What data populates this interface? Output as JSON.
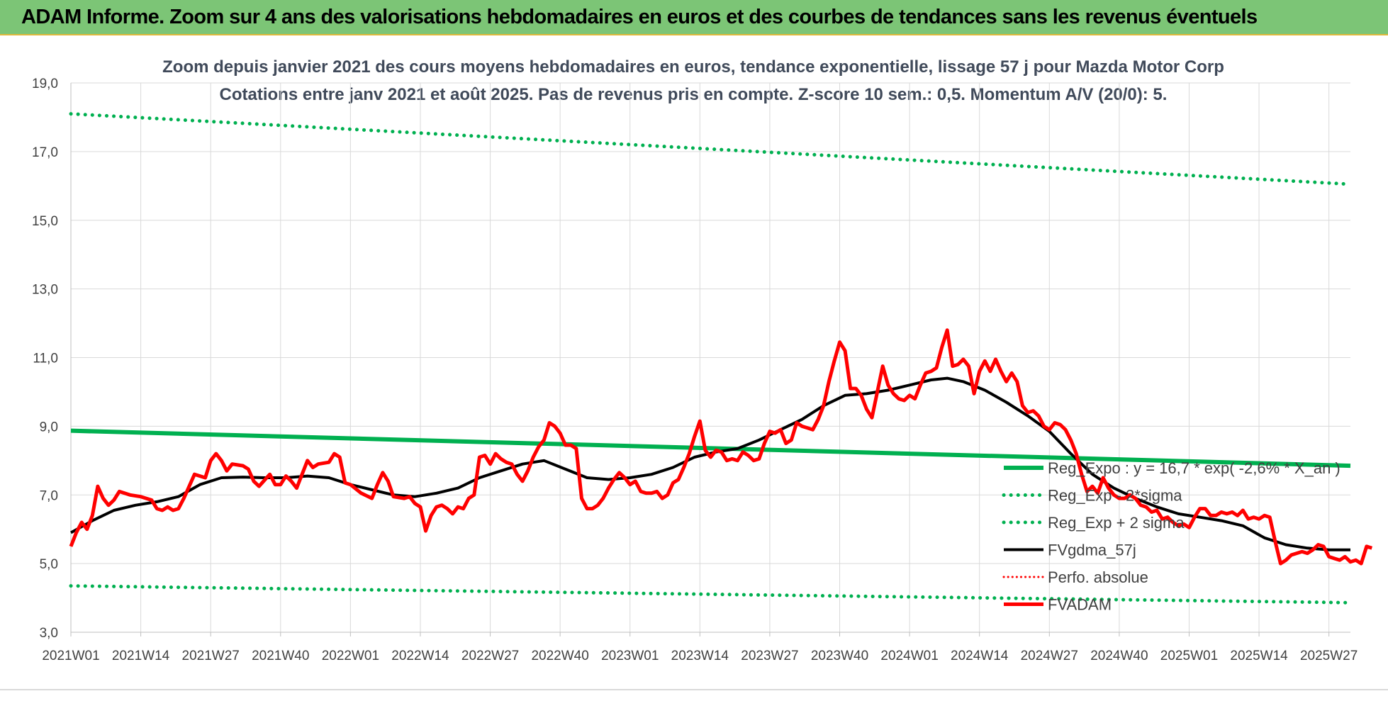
{
  "header": {
    "title": "ADAM Informe. Zoom sur 4 ans des valorisations hebdomadaires en euros et des courbes de tendances sans les revenus éventuels"
  },
  "colors": {
    "header_bg": "#7cc576",
    "green": "#00b050",
    "black": "#000000",
    "red": "#ff0000",
    "title_text": "#404a5a"
  },
  "chart_data": {
    "type": "line",
    "title": "Zoom depuis janvier 2021 des cours moyens hebdomadaires en euros, tendance exponentielle, lissage 57 j pour Mazda Motor Corp",
    "subtitle": "Cotations entre janv 2021 et août 2025.  Pas de revenus pris en compte. Z-score 10 sem.: 0,5. Momentum A/V (20/0): 5.",
    "xlabel": "",
    "ylabel": "",
    "ylim": [
      3,
      19
    ],
    "y_ticks": [
      "3,0",
      "5,0",
      "7,0",
      "9,0",
      "11,0",
      "13,0",
      "15,0",
      "17,0",
      "19,0"
    ],
    "x_ticks": [
      "2021W01",
      "2021W14",
      "2021W27",
      "2021W40",
      "2022W01",
      "2022W14",
      "2022W27",
      "2022W40",
      "2023W01",
      "2023W14",
      "2023W27",
      "2023W40",
      "2024W01",
      "2024W14",
      "2024W27",
      "2024W40",
      "2025W01",
      "2025W14",
      "2025W27"
    ],
    "x_tick_index": [
      0,
      13,
      26,
      39,
      52,
      65,
      78,
      91,
      104,
      117,
      130,
      143,
      156,
      169,
      182,
      195,
      208,
      221,
      234
    ],
    "x_range": [
      0,
      238
    ],
    "grid": true,
    "legend_position": "bottom-right",
    "series": [
      {
        "name": "Reg_Expo : y = 16,7 * exp( -2,6% *  X_an )",
        "style": "solid-green",
        "points": [
          [
            0,
            8.87
          ],
          [
            238,
            7.85
          ]
        ]
      },
      {
        "name": "Reg_Exp - 2*sigma",
        "style": "dotted-green",
        "points": [
          [
            0,
            4.35
          ],
          [
            238,
            3.86
          ]
        ]
      },
      {
        "name": "Reg_Exp + 2 sigma",
        "style": "dotted-green",
        "points": [
          [
            0,
            18.1
          ],
          [
            238,
            16.05
          ]
        ]
      },
      {
        "name": "FVgdma_57j",
        "style": "solid-black",
        "points": [
          [
            0,
            5.9
          ],
          [
            4,
            6.25
          ],
          [
            8,
            6.55
          ],
          [
            12,
            6.7
          ],
          [
            16,
            6.8
          ],
          [
            20,
            6.95
          ],
          [
            24,
            7.3
          ],
          [
            28,
            7.5
          ],
          [
            32,
            7.52
          ],
          [
            36,
            7.5
          ],
          [
            40,
            7.5
          ],
          [
            44,
            7.55
          ],
          [
            48,
            7.5
          ],
          [
            52,
            7.3
          ],
          [
            56,
            7.15
          ],
          [
            60,
            7.0
          ],
          [
            64,
            6.95
          ],
          [
            68,
            7.05
          ],
          [
            72,
            7.2
          ],
          [
            76,
            7.5
          ],
          [
            80,
            7.7
          ],
          [
            84,
            7.9
          ],
          [
            88,
            8.0
          ],
          [
            92,
            7.75
          ],
          [
            96,
            7.5
          ],
          [
            100,
            7.45
          ],
          [
            104,
            7.5
          ],
          [
            108,
            7.6
          ],
          [
            112,
            7.8
          ],
          [
            116,
            8.1
          ],
          [
            120,
            8.25
          ],
          [
            124,
            8.35
          ],
          [
            128,
            8.6
          ],
          [
            132,
            8.9
          ],
          [
            136,
            9.2
          ],
          [
            140,
            9.6
          ],
          [
            144,
            9.9
          ],
          [
            148,
            9.95
          ],
          [
            152,
            10.05
          ],
          [
            156,
            10.2
          ],
          [
            160,
            10.35
          ],
          [
            163,
            10.4
          ],
          [
            166,
            10.3
          ],
          [
            170,
            10.05
          ],
          [
            174,
            9.7
          ],
          [
            178,
            9.3
          ],
          [
            182,
            8.85
          ],
          [
            186,
            8.2
          ],
          [
            190,
            7.6
          ],
          [
            194,
            7.2
          ],
          [
            198,
            6.9
          ],
          [
            202,
            6.65
          ],
          [
            206,
            6.45
          ],
          [
            210,
            6.35
          ],
          [
            214,
            6.25
          ],
          [
            218,
            6.1
          ],
          [
            222,
            5.75
          ],
          [
            226,
            5.55
          ],
          [
            230,
            5.45
          ],
          [
            234,
            5.4
          ],
          [
            238,
            5.4
          ]
        ]
      },
      {
        "name": "Perfo. absolue",
        "style": "dotted-red",
        "points": []
      },
      {
        "name": "FVADAM",
        "style": "solid-red",
        "points": [
          [
            0,
            5.5
          ],
          [
            1,
            5.9
          ],
          [
            2,
            6.2
          ],
          [
            3,
            6.0
          ],
          [
            4,
            6.4
          ],
          [
            5,
            7.25
          ],
          [
            6,
            6.9
          ],
          [
            7,
            6.7
          ],
          [
            8,
            6.85
          ],
          [
            9,
            7.1
          ],
          [
            11,
            7.0
          ],
          [
            13,
            6.95
          ],
          [
            15,
            6.85
          ],
          [
            16,
            6.6
          ],
          [
            17,
            6.55
          ],
          [
            18,
            6.65
          ],
          [
            19,
            6.55
          ],
          [
            20,
            6.6
          ],
          [
            21,
            6.9
          ],
          [
            23,
            7.6
          ],
          [
            25,
            7.5
          ],
          [
            26,
            8.0
          ],
          [
            27,
            8.2
          ],
          [
            28,
            8.0
          ],
          [
            29,
            7.7
          ],
          [
            30,
            7.9
          ],
          [
            32,
            7.85
          ],
          [
            33,
            7.75
          ],
          [
            34,
            7.4
          ],
          [
            35,
            7.25
          ],
          [
            37,
            7.6
          ],
          [
            38,
            7.3
          ],
          [
            39,
            7.3
          ],
          [
            40,
            7.55
          ],
          [
            41,
            7.4
          ],
          [
            42,
            7.2
          ],
          [
            44,
            8.0
          ],
          [
            45,
            7.8
          ],
          [
            46,
            7.9
          ],
          [
            48,
            7.95
          ],
          [
            49,
            8.2
          ],
          [
            50,
            8.1
          ],
          [
            51,
            7.35
          ],
          [
            52,
            7.3
          ],
          [
            54,
            7.05
          ],
          [
            56,
            6.9
          ],
          [
            57,
            7.3
          ],
          [
            58,
            7.65
          ],
          [
            59,
            7.4
          ],
          [
            60,
            6.95
          ],
          [
            62,
            6.9
          ],
          [
            63,
            6.95
          ],
          [
            64,
            6.75
          ],
          [
            65,
            6.65
          ],
          [
            66,
            5.95
          ],
          [
            67,
            6.4
          ],
          [
            68,
            6.65
          ],
          [
            69,
            6.7
          ],
          [
            70,
            6.6
          ],
          [
            71,
            6.45
          ],
          [
            72,
            6.65
          ],
          [
            73,
            6.6
          ],
          [
            74,
            6.9
          ],
          [
            75,
            7.0
          ],
          [
            76,
            8.1
          ],
          [
            77,
            8.15
          ],
          [
            78,
            7.9
          ],
          [
            79,
            8.2
          ],
          [
            80,
            8.05
          ],
          [
            81,
            7.95
          ],
          [
            82,
            7.9
          ],
          [
            83,
            7.6
          ],
          [
            84,
            7.4
          ],
          [
            85,
            7.7
          ],
          [
            86,
            8.1
          ],
          [
            87,
            8.4
          ],
          [
            88,
            8.6
          ],
          [
            89,
            9.1
          ],
          [
            90,
            9.0
          ],
          [
            91,
            8.8
          ],
          [
            92,
            8.45
          ],
          [
            93,
            8.45
          ],
          [
            94,
            8.35
          ],
          [
            95,
            6.9
          ],
          [
            96,
            6.6
          ],
          [
            97,
            6.6
          ],
          [
            98,
            6.7
          ],
          [
            99,
            6.9
          ],
          [
            100,
            7.2
          ],
          [
            101,
            7.45
          ],
          [
            102,
            7.65
          ],
          [
            103,
            7.5
          ],
          [
            104,
            7.3
          ],
          [
            105,
            7.4
          ],
          [
            106,
            7.1
          ],
          [
            107,
            7.05
          ],
          [
            108,
            7.05
          ],
          [
            109,
            7.1
          ],
          [
            110,
            6.9
          ],
          [
            111,
            7.0
          ],
          [
            112,
            7.35
          ],
          [
            113,
            7.45
          ],
          [
            114,
            7.8
          ],
          [
            115,
            8.2
          ],
          [
            116,
            8.7
          ],
          [
            117,
            9.15
          ],
          [
            118,
            8.3
          ],
          [
            119,
            8.1
          ],
          [
            120,
            8.3
          ],
          [
            121,
            8.25
          ],
          [
            122,
            8.0
          ],
          [
            123,
            8.05
          ],
          [
            124,
            8.0
          ],
          [
            125,
            8.25
          ],
          [
            126,
            8.15
          ],
          [
            127,
            8.0
          ],
          [
            128,
            8.05
          ],
          [
            129,
            8.5
          ],
          [
            130,
            8.85
          ],
          [
            131,
            8.8
          ],
          [
            132,
            8.9
          ],
          [
            133,
            8.5
          ],
          [
            134,
            8.6
          ],
          [
            135,
            9.1
          ],
          [
            136,
            9.0
          ],
          [
            137,
            8.95
          ],
          [
            138,
            8.9
          ],
          [
            139,
            9.2
          ],
          [
            140,
            9.6
          ],
          [
            141,
            10.3
          ],
          [
            142,
            10.9
          ],
          [
            143,
            11.45
          ],
          [
            144,
            11.2
          ],
          [
            145,
            10.1
          ],
          [
            146,
            10.1
          ],
          [
            147,
            9.9
          ],
          [
            148,
            9.5
          ],
          [
            149,
            9.25
          ],
          [
            150,
            10.0
          ],
          [
            151,
            10.75
          ],
          [
            152,
            10.2
          ],
          [
            153,
            9.95
          ],
          [
            154,
            9.8
          ],
          [
            155,
            9.75
          ],
          [
            156,
            9.9
          ],
          [
            157,
            9.8
          ],
          [
            158,
            10.2
          ],
          [
            159,
            10.55
          ],
          [
            160,
            10.6
          ],
          [
            161,
            10.7
          ],
          [
            162,
            11.3
          ],
          [
            163,
            11.8
          ],
          [
            164,
            10.75
          ],
          [
            165,
            10.8
          ],
          [
            166,
            10.95
          ],
          [
            167,
            10.75
          ],
          [
            168,
            9.95
          ],
          [
            169,
            10.6
          ],
          [
            170,
            10.9
          ],
          [
            171,
            10.6
          ],
          [
            172,
            10.95
          ],
          [
            173,
            10.6
          ],
          [
            174,
            10.3
          ],
          [
            175,
            10.55
          ],
          [
            176,
            10.3
          ],
          [
            177,
            9.6
          ],
          [
            178,
            9.4
          ],
          [
            179,
            9.45
          ],
          [
            180,
            9.3
          ],
          [
            181,
            9.0
          ],
          [
            182,
            8.9
          ],
          [
            183,
            9.1
          ],
          [
            184,
            9.05
          ],
          [
            185,
            8.9
          ],
          [
            186,
            8.6
          ],
          [
            187,
            8.2
          ],
          [
            188,
            7.6
          ],
          [
            189,
            7.1
          ],
          [
            190,
            7.25
          ],
          [
            191,
            7.05
          ],
          [
            192,
            7.5
          ],
          [
            193,
            7.2
          ],
          [
            194,
            7.0
          ],
          [
            195,
            6.9
          ],
          [
            196,
            6.9
          ],
          [
            197,
            7.0
          ],
          [
            198,
            6.9
          ],
          [
            199,
            6.7
          ],
          [
            200,
            6.65
          ],
          [
            201,
            6.5
          ],
          [
            202,
            6.55
          ],
          [
            203,
            6.3
          ],
          [
            204,
            6.35
          ],
          [
            205,
            6.2
          ],
          [
            206,
            6.1
          ],
          [
            207,
            6.15
          ],
          [
            208,
            6.05
          ],
          [
            209,
            6.35
          ],
          [
            210,
            6.6
          ],
          [
            211,
            6.6
          ],
          [
            212,
            6.4
          ],
          [
            213,
            6.4
          ],
          [
            214,
            6.5
          ],
          [
            215,
            6.45
          ],
          [
            216,
            6.5
          ],
          [
            217,
            6.4
          ],
          [
            218,
            6.55
          ],
          [
            219,
            6.3
          ],
          [
            220,
            6.35
          ],
          [
            221,
            6.3
          ],
          [
            222,
            6.4
          ],
          [
            223,
            6.35
          ],
          [
            224,
            5.65
          ],
          [
            225,
            5.0
          ],
          [
            226,
            5.1
          ],
          [
            227,
            5.25
          ],
          [
            228,
            5.3
          ],
          [
            229,
            5.35
          ],
          [
            230,
            5.3
          ],
          [
            231,
            5.4
          ],
          [
            232,
            5.55
          ],
          [
            233,
            5.5
          ],
          [
            234,
            5.2
          ],
          [
            235,
            5.15
          ],
          [
            236,
            5.1
          ],
          [
            237,
            5.2
          ],
          [
            238,
            5.05
          ],
          [
            239,
            5.1
          ],
          [
            240,
            5.0
          ],
          [
            241,
            5.5
          ],
          [
            242,
            5.45
          ]
        ]
      }
    ]
  }
}
